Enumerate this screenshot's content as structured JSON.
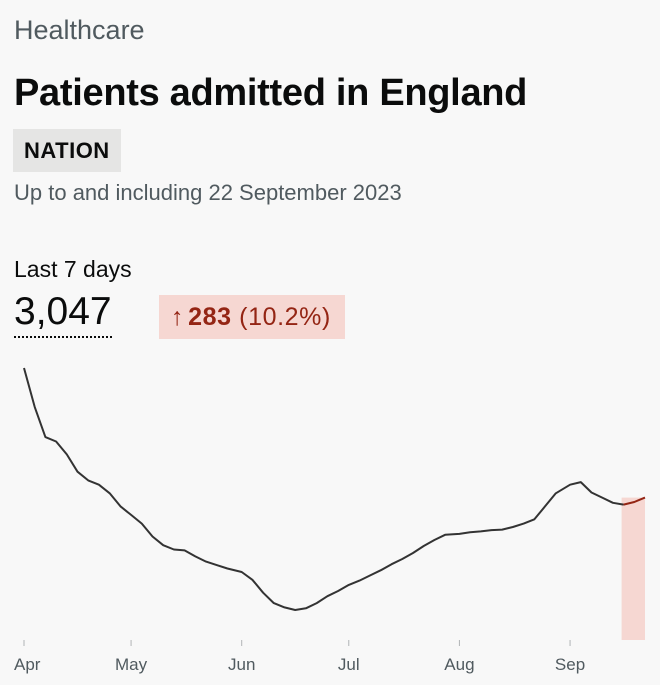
{
  "header": {
    "caption": "Healthcare",
    "title": "Patients admitted in England",
    "tag": "NATION",
    "updated": "Up to and including 22 September 2023"
  },
  "metric": {
    "label": "Last 7 days",
    "value": "3,047",
    "change_arrow": "↑",
    "change_value": "283",
    "change_percent": "(10.2%)"
  },
  "colors": {
    "line": "#333333",
    "highlight_line": "#942514",
    "highlight_fill": "#f6d7d2",
    "axis_text": "#505a5f"
  },
  "chart_data": {
    "type": "line",
    "title": "",
    "xlabel": "",
    "ylabel": "",
    "x_ticks": [
      "Apr",
      "May",
      "Jun",
      "Jul",
      "Aug",
      "Sep"
    ],
    "grid": false,
    "highlight": "last 7 days",
    "series": [
      {
        "x": [
          "2023-04-01",
          "2023-04-04",
          "2023-04-07",
          "2023-04-10",
          "2023-04-13",
          "2023-04-16",
          "2023-04-19",
          "2023-04-22",
          "2023-04-25",
          "2023-04-28",
          "2023-05-01",
          "2023-05-04",
          "2023-05-07",
          "2023-05-10",
          "2023-05-13",
          "2023-05-16",
          "2023-05-19",
          "2023-05-22",
          "2023-05-25",
          "2023-05-28",
          "2023-06-01",
          "2023-06-04",
          "2023-06-07",
          "2023-06-10",
          "2023-06-13",
          "2023-06-16",
          "2023-06-19",
          "2023-06-22",
          "2023-06-25",
          "2023-06-28",
          "2023-07-01",
          "2023-07-04",
          "2023-07-07",
          "2023-07-10",
          "2023-07-13",
          "2023-07-16",
          "2023-07-19",
          "2023-07-22",
          "2023-07-25",
          "2023-07-28",
          "2023-08-01",
          "2023-08-04",
          "2023-08-07",
          "2023-08-10",
          "2023-08-13",
          "2023-08-16",
          "2023-08-19",
          "2023-08-22",
          "2023-08-25",
          "2023-08-28",
          "2023-09-01",
          "2023-09-04",
          "2023-09-07",
          "2023-09-10",
          "2023-09-13",
          "2023-09-16",
          "2023-09-19",
          "2023-09-22"
        ],
        "values": [
          4800,
          4350,
          4000,
          3950,
          3800,
          3600,
          3500,
          3450,
          3350,
          3200,
          3100,
          3000,
          2850,
          2750,
          2700,
          2690,
          2620,
          2560,
          2520,
          2480,
          2440,
          2350,
          2200,
          2080,
          2030,
          2000,
          2020,
          2080,
          2160,
          2220,
          2290,
          2340,
          2400,
          2460,
          2530,
          2590,
          2660,
          2740,
          2810,
          2870,
          2880,
          2900,
          2910,
          2925,
          2930,
          2960,
          3000,
          3050,
          3200,
          3350,
          3450,
          3480,
          3360,
          3300,
          3240,
          3220,
          3250,
          3300
        ]
      }
    ]
  }
}
